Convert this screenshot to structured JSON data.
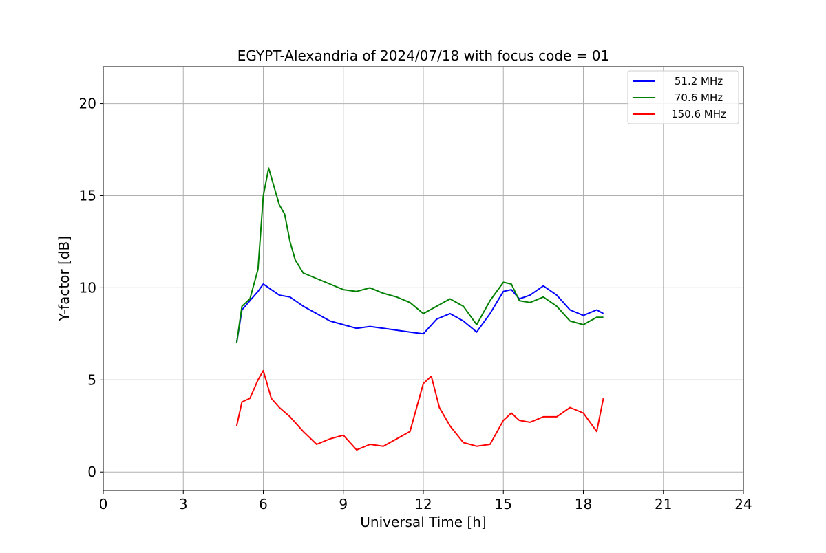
{
  "chart_data": {
    "type": "line",
    "title": "EGYPT-Alexandria of 2024/07/18 with focus code = 01",
    "xlabel": "Universal Time [h]",
    "ylabel": "Y-factor [dB]",
    "xlim": [
      0,
      24
    ],
    "ylim": [
      -1,
      22
    ],
    "xticks": [
      0,
      3,
      6,
      9,
      12,
      15,
      18,
      21,
      24
    ],
    "yticks": [
      0,
      5,
      10,
      15,
      20
    ],
    "xtick_labels": [
      "0",
      "3",
      "6",
      "9",
      "12",
      "15",
      "18",
      "21",
      "24"
    ],
    "ytick_labels": [
      "0",
      "5",
      "10",
      "15",
      "20"
    ],
    "grid": true,
    "legend_position": "top-right",
    "series": [
      {
        "name": "51.2 MHz",
        "color": "#0000ff",
        "x": [
          5.0,
          5.2,
          5.5,
          5.8,
          6.0,
          6.3,
          6.6,
          7.0,
          7.5,
          8.0,
          8.5,
          9.0,
          9.5,
          10.0,
          10.5,
          11.0,
          11.5,
          12.0,
          12.5,
          13.0,
          13.5,
          14.0,
          14.5,
          15.0,
          15.3,
          15.6,
          16.0,
          16.5,
          17.0,
          17.5,
          18.0,
          18.5,
          18.75
        ],
        "y": [
          7.0,
          8.8,
          9.3,
          9.8,
          10.2,
          9.9,
          9.6,
          9.5,
          9.0,
          8.6,
          8.2,
          8.0,
          7.8,
          7.9,
          7.8,
          7.7,
          7.6,
          7.5,
          8.3,
          8.6,
          8.2,
          7.6,
          8.6,
          9.8,
          9.9,
          9.4,
          9.6,
          10.1,
          9.6,
          8.8,
          8.5,
          8.8,
          8.6
        ]
      },
      {
        "name": "70.6 MHz",
        "color": "#008000",
        "x": [
          5.0,
          5.2,
          5.5,
          5.8,
          6.0,
          6.2,
          6.4,
          6.6,
          6.8,
          7.0,
          7.2,
          7.5,
          8.0,
          8.5,
          9.0,
          9.5,
          10.0,
          10.5,
          11.0,
          11.5,
          12.0,
          12.5,
          13.0,
          13.5,
          14.0,
          14.5,
          15.0,
          15.3,
          15.6,
          16.0,
          16.5,
          17.0,
          17.5,
          18.0,
          18.5,
          18.75
        ],
        "y": [
          7.0,
          9.0,
          9.4,
          11.0,
          15.0,
          16.5,
          15.5,
          14.5,
          14.0,
          12.5,
          11.5,
          10.8,
          10.5,
          10.2,
          9.9,
          9.8,
          10.0,
          9.7,
          9.5,
          9.2,
          8.6,
          9.0,
          9.4,
          9.0,
          8.0,
          9.3,
          10.3,
          10.2,
          9.3,
          9.2,
          9.5,
          9.0,
          8.2,
          8.0,
          8.4,
          8.4
        ]
      },
      {
        "name": "150.6 MHz",
        "color": "#ff0000",
        "x": [
          5.0,
          5.2,
          5.5,
          5.8,
          6.0,
          6.3,
          6.6,
          7.0,
          7.5,
          8.0,
          8.5,
          9.0,
          9.5,
          10.0,
          10.5,
          11.0,
          11.5,
          12.0,
          12.3,
          12.6,
          13.0,
          13.5,
          14.0,
          14.5,
          15.0,
          15.3,
          15.6,
          16.0,
          16.5,
          17.0,
          17.5,
          18.0,
          18.5,
          18.75
        ],
        "y": [
          2.5,
          3.8,
          4.0,
          5.0,
          5.5,
          4.0,
          3.5,
          3.0,
          2.2,
          1.5,
          1.8,
          2.0,
          1.2,
          1.5,
          1.4,
          1.8,
          2.2,
          4.8,
          5.2,
          3.5,
          2.5,
          1.6,
          1.4,
          1.5,
          2.8,
          3.2,
          2.8,
          2.7,
          3.0,
          3.0,
          3.5,
          3.2,
          2.2,
          4.0
        ]
      }
    ]
  }
}
